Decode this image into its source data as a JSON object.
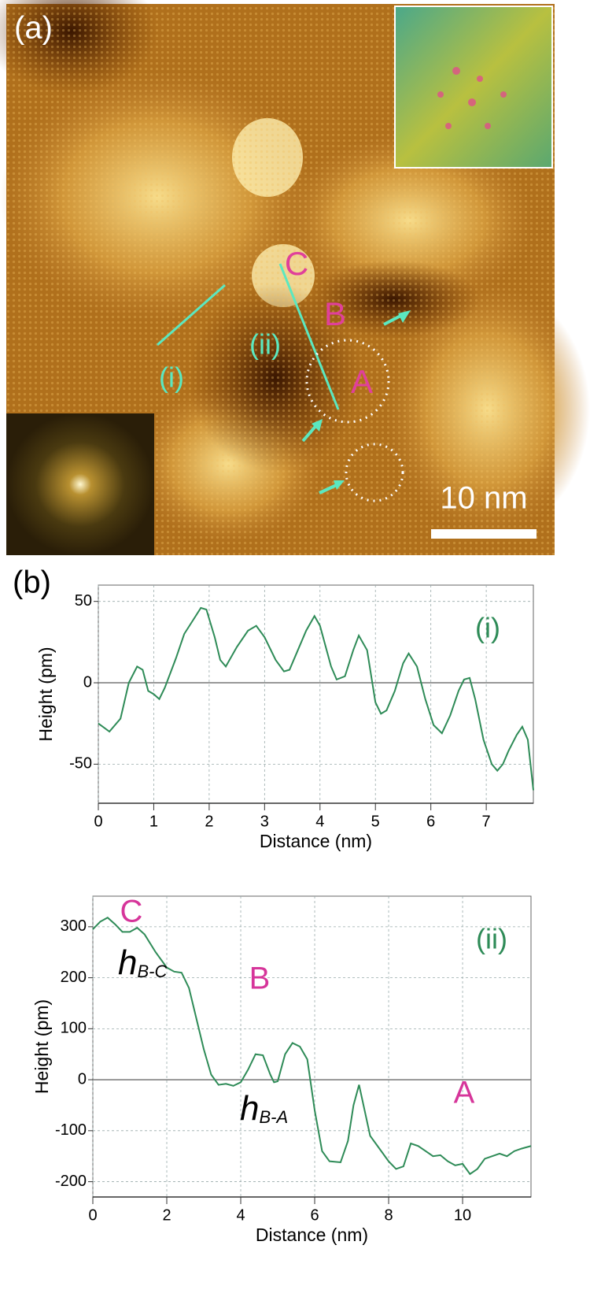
{
  "image": {
    "panel_label": "(a)",
    "scale_bar": "10 nm",
    "line_labels": [
      "(i)",
      "(ii)"
    ],
    "site_labels": [
      "C",
      "B",
      "A"
    ]
  },
  "panel_label_b": "(b)",
  "chart_data": [
    {
      "type": "line",
      "xlabel": "Distance (nm)",
      "ylabel": "Height (pm)",
      "x": [
        0,
        0.2,
        0.4,
        0.55,
        0.7,
        0.8,
        0.9,
        1.0,
        1.1,
        1.2,
        1.4,
        1.55,
        1.7,
        1.85,
        1.95,
        2.1,
        2.2,
        2.3,
        2.5,
        2.7,
        2.85,
        3.0,
        3.2,
        3.35,
        3.45,
        3.6,
        3.75,
        3.9,
        4.0,
        4.2,
        4.3,
        4.45,
        4.6,
        4.7,
        4.85,
        5.0,
        5.1,
        5.2,
        5.35,
        5.5,
        5.6,
        5.75,
        5.9,
        6.05,
        6.2,
        6.35,
        6.5,
        6.6,
        6.7,
        6.8,
        6.95,
        7.1,
        7.2,
        7.3,
        7.4,
        7.55,
        7.65,
        7.75,
        7.85
      ],
      "series": [
        {
          "name": "(i)",
          "color": "#2e8b57",
          "values": [
            -25,
            -30,
            -22,
            0,
            10,
            8,
            -5,
            -7,
            -10,
            -3,
            15,
            30,
            38,
            46,
            45,
            28,
            14,
            10,
            22,
            32,
            35,
            28,
            14,
            7,
            8,
            20,
            32,
            41,
            35,
            10,
            2,
            4,
            20,
            29,
            20,
            -12,
            -19,
            -17,
            -5,
            12,
            18,
            10,
            -10,
            -26,
            -31,
            -20,
            -5,
            2,
            3,
            -10,
            -35,
            -50,
            -54,
            -50,
            -42,
            -32,
            -27,
            -35,
            -66
          ]
        }
      ],
      "xlim": [
        0,
        7.85
      ],
      "ylim": [
        -74,
        60
      ],
      "xticks": [
        0,
        1,
        2,
        3,
        4,
        5,
        6,
        7
      ],
      "yticks": [
        -50,
        0,
        50
      ],
      "grid": true
    },
    {
      "type": "line",
      "xlabel": "Distance (nm)",
      "ylabel": "Height (pm)",
      "x": [
        0,
        0.2,
        0.4,
        0.6,
        0.8,
        1.0,
        1.2,
        1.4,
        1.7,
        2.0,
        2.2,
        2.4,
        2.6,
        2.8,
        3.0,
        3.2,
        3.4,
        3.6,
        3.8,
        4.0,
        4.2,
        4.4,
        4.6,
        4.8,
        4.9,
        5.0,
        5.2,
        5.4,
        5.6,
        5.8,
        6.0,
        6.2,
        6.4,
        6.7,
        6.9,
        7.05,
        7.2,
        7.35,
        7.5,
        7.8,
        8.0,
        8.2,
        8.4,
        8.6,
        8.8,
        9.0,
        9.2,
        9.4,
        9.6,
        9.8,
        10.0,
        10.2,
        10.4,
        10.6,
        10.8,
        11.0,
        11.2,
        11.4,
        11.6,
        11.85
      ],
      "series": [
        {
          "name": "(ii)",
          "color": "#2e8b57",
          "values": [
            295,
            310,
            318,
            305,
            290,
            290,
            298,
            285,
            250,
            220,
            212,
            210,
            180,
            120,
            60,
            10,
            -10,
            -8,
            -12,
            -5,
            20,
            50,
            48,
            10,
            -5,
            -3,
            50,
            72,
            65,
            40,
            -60,
            -140,
            -160,
            -162,
            -120,
            -50,
            -10,
            -60,
            -110,
            -140,
            -160,
            -175,
            -170,
            -125,
            -130,
            -140,
            -150,
            -148,
            -160,
            -168,
            -165,
            -185,
            -175,
            -155,
            -150,
            -145,
            -150,
            -140,
            -135,
            -130
          ]
        }
      ],
      "annotations": [
        "C",
        "B",
        "A"
      ],
      "arrow_labels": [
        {
          "symbol": "h",
          "subscript": "B-C"
        },
        {
          "symbol": "h",
          "subscript": "B-A"
        }
      ],
      "xlim": [
        0,
        11.85
      ],
      "ylim": [
        -230,
        360
      ],
      "xticks": [
        0,
        2,
        4,
        6,
        8,
        10
      ],
      "yticks": [
        -200,
        -100,
        0,
        100,
        200,
        300
      ],
      "grid": true
    }
  ]
}
